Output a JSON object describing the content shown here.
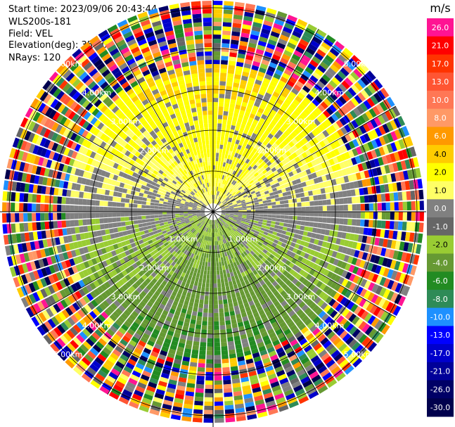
{
  "header": {
    "start_time": "Start time: 2023/09/06 20:43:44",
    "instrument": "WLS200s-181",
    "field": "Field: VEL",
    "elevation": "Elevation(deg): 35.30",
    "nrays": "NRays: 120"
  },
  "chart_data": {
    "type": "heatmap",
    "projection": "polar-ppi",
    "field": "VEL",
    "units": "m/s",
    "n_rays": 120,
    "elevation_deg": 35.3,
    "ring_labels": [
      {
        "text": "1.00km",
        "azimuth_deg": 225
      },
      {
        "text": "1.00km",
        "azimuth_deg": 135
      },
      {
        "text": "2.00km",
        "azimuth_deg": 225
      },
      {
        "text": "2.00km",
        "azimuth_deg": 135
      },
      {
        "text": "2.00km",
        "azimuth_deg": 315
      },
      {
        "text": "2.00km",
        "azimuth_deg": 45
      },
      {
        "text": "3.00km",
        "azimuth_deg": 225
      },
      {
        "text": "3.00km",
        "azimuth_deg": 135
      },
      {
        "text": "3.00km",
        "azimuth_deg": 315
      },
      {
        "text": "3.00km",
        "azimuth_deg": 45
      },
      {
        "text": "4.00km",
        "azimuth_deg": 225
      },
      {
        "text": "4.00km",
        "azimuth_deg": 135
      },
      {
        "text": "4.00km",
        "azimuth_deg": 315
      },
      {
        "text": "4.00km",
        "azimuth_deg": 45
      },
      {
        "text": "5.00km",
        "azimuth_deg": 225
      },
      {
        "text": "5.00km",
        "azimuth_deg": 135
      },
      {
        "text": "5.00km",
        "azimuth_deg": 315
      },
      {
        "text": "5.00km",
        "azimuth_deg": 45
      }
    ],
    "colorbar": {
      "unit": "m/s",
      "levels": [
        "26.0",
        "21.0",
        "17.0",
        "13.0",
        "10.0",
        "8.0",
        "6.0",
        "4.0",
        "2.0",
        "1.0",
        "0.0",
        "-1.0",
        "-2.0",
        "-4.0",
        "-6.0",
        "-8.0",
        "-10.0",
        "-13.0",
        "-17.0",
        "-21.0",
        "-26.0",
        "-30.0"
      ],
      "colors": [
        "#ff1493",
        "#ff0000",
        "#ff3300",
        "#ff5533",
        "#ff7755",
        "#ff9966",
        "#ff9900",
        "#ffcc00",
        "#ffff00",
        "#ffff66",
        "#808080",
        "#666666",
        "#99cc33",
        "#669933",
        "#228b22",
        "#2e8b57",
        "#1e90ff",
        "#0000ff",
        "#0000cc",
        "#000099",
        "#000066",
        "#00004d"
      ]
    },
    "grid": true
  }
}
